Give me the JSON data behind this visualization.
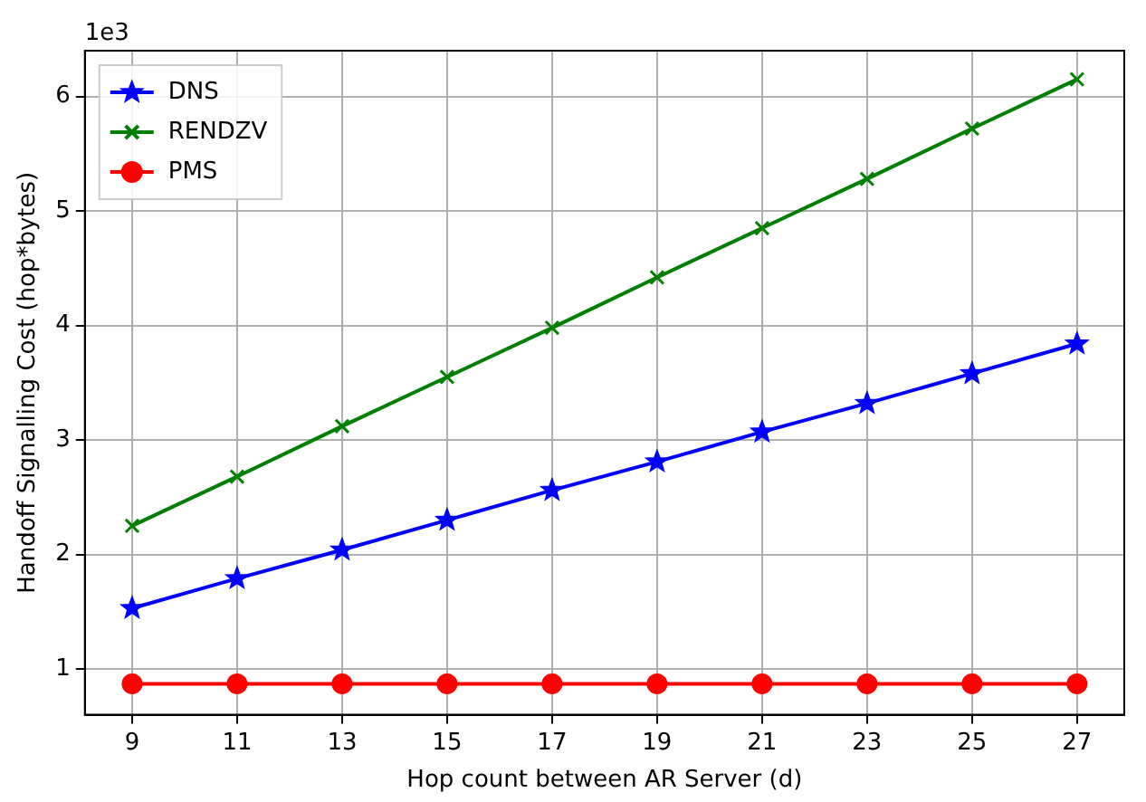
{
  "chart_data": {
    "type": "line",
    "xlabel": "Hop count between AR Server (d)",
    "ylabel": "Handoff Signalling Cost (hop*bytes)",
    "annotations": [
      "1e3"
    ],
    "x": [
      9,
      11,
      13,
      15,
      17,
      19,
      21,
      23,
      25,
      27
    ],
    "series": [
      {
        "name": "DNS",
        "color": "#0000ff",
        "marker": "star",
        "values": [
          1.53,
          1.79,
          2.04,
          2.3,
          2.56,
          2.81,
          3.07,
          3.32,
          3.58,
          3.84
        ]
      },
      {
        "name": "RENDZV",
        "color": "#008000",
        "marker": "cross",
        "values": [
          2.25,
          2.68,
          3.12,
          3.55,
          3.98,
          4.42,
          4.85,
          5.28,
          5.72,
          6.15
        ]
      },
      {
        "name": "PMS",
        "color": "#ff0000",
        "marker": "circle",
        "values": [
          0.87,
          0.87,
          0.87,
          0.87,
          0.87,
          0.87,
          0.87,
          0.87,
          0.87,
          0.87
        ]
      }
    ],
    "xlim": [
      8.1,
      27.9
    ],
    "xticks": [
      9,
      11,
      13,
      15,
      17,
      19,
      21,
      23,
      25,
      27
    ],
    "ylim": [
      0.6,
      6.4
    ],
    "yticks": [
      1,
      2,
      3,
      4,
      5,
      6
    ],
    "grid": true,
    "legend": "top left",
    "line_style": "solid"
  }
}
